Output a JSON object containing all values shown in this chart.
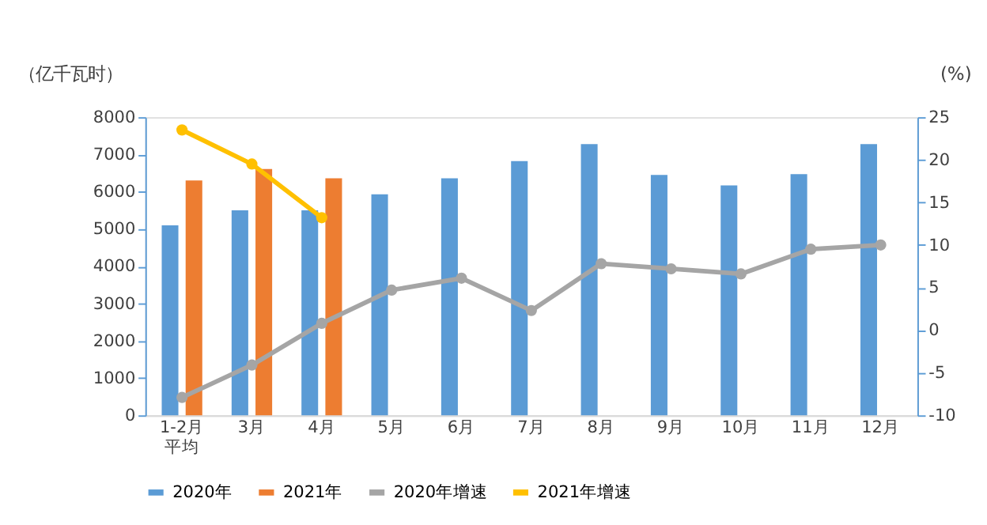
{
  "chart_data": {
    "type": "bar",
    "categories": [
      "1-2月平均",
      "3月",
      "4月",
      "5月",
      "6月",
      "7月",
      "8月",
      "9月",
      "10月",
      "11月",
      "12月"
    ],
    "ylabel": "（亿千瓦时）",
    "y2label": "(%)",
    "ylim": [
      0,
      8000
    ],
    "yticks": [
      0,
      1000,
      2000,
      3000,
      4000,
      5000,
      6000,
      7000,
      8000
    ],
    "y2lim": [
      -10,
      25
    ],
    "y2ticks": [
      -10,
      -5,
      0,
      5,
      10,
      15,
      20,
      25
    ],
    "grid": false,
    "legend": "bottom",
    "series": [
      {
        "name": "2020年",
        "color": "#5b9bd5",
        "values": [
          5100,
          5500,
          5500,
          5930,
          6360,
          6820,
          7280,
          6450,
          6170,
          6470,
          7280
        ]
      },
      {
        "name": "2021年",
        "color": "#ed7d31",
        "values": [
          6300,
          6610,
          6360,
          null,
          null,
          null,
          null,
          null,
          null,
          null,
          null
        ]
      },
      {
        "name": "2020年增速",
        "type": "line",
        "axis": "y2",
        "marker": "circle",
        "color": "#a5a5a5",
        "values": [
          -7.9,
          -4.1,
          0.8,
          4.7,
          6.1,
          2.3,
          7.8,
          7.2,
          6.6,
          9.5,
          10.0
        ]
      },
      {
        "name": "2021年增速",
        "type": "line",
        "axis": "y2",
        "marker": "circle",
        "color": "#ffc000",
        "values": [
          23.5,
          19.5,
          13.2,
          null,
          null,
          null,
          null,
          null,
          null,
          null,
          null
        ]
      }
    ]
  }
}
